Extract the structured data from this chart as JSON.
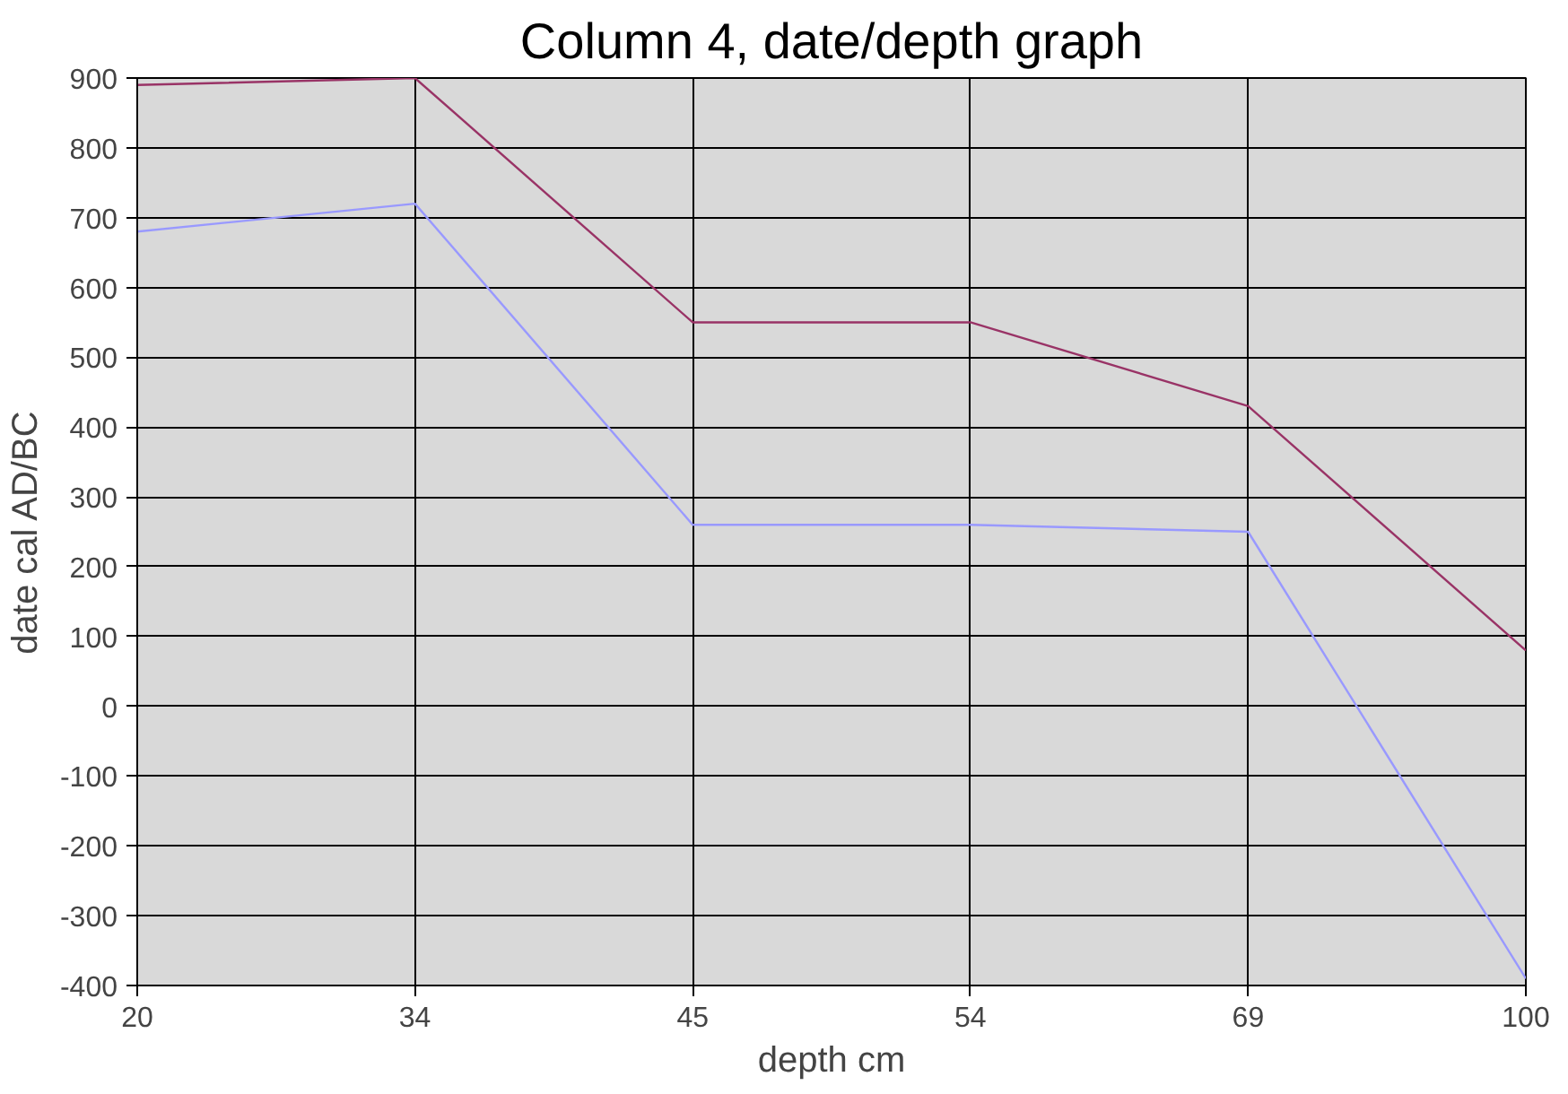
{
  "chart_data": {
    "type": "line",
    "title": "Column 4, date/depth graph",
    "xlabel": "depth cm",
    "ylabel": "date cal AD/BC",
    "categories": [
      "20",
      "34",
      "45",
      "54",
      "69",
      "100"
    ],
    "series": [
      {
        "color": "#993366",
        "values": [
          890,
          900,
          550,
          550,
          430,
          80
        ]
      },
      {
        "color": "#9999ff",
        "values": [
          680,
          720,
          260,
          260,
          250,
          -390
        ]
      }
    ],
    "ylim": [
      -400,
      900
    ],
    "yticks": [
      -400,
      -300,
      -200,
      -100,
      0,
      100,
      200,
      300,
      400,
      500,
      600,
      700,
      800,
      900
    ],
    "grid": true,
    "marker": "none",
    "line_style": "solid"
  }
}
